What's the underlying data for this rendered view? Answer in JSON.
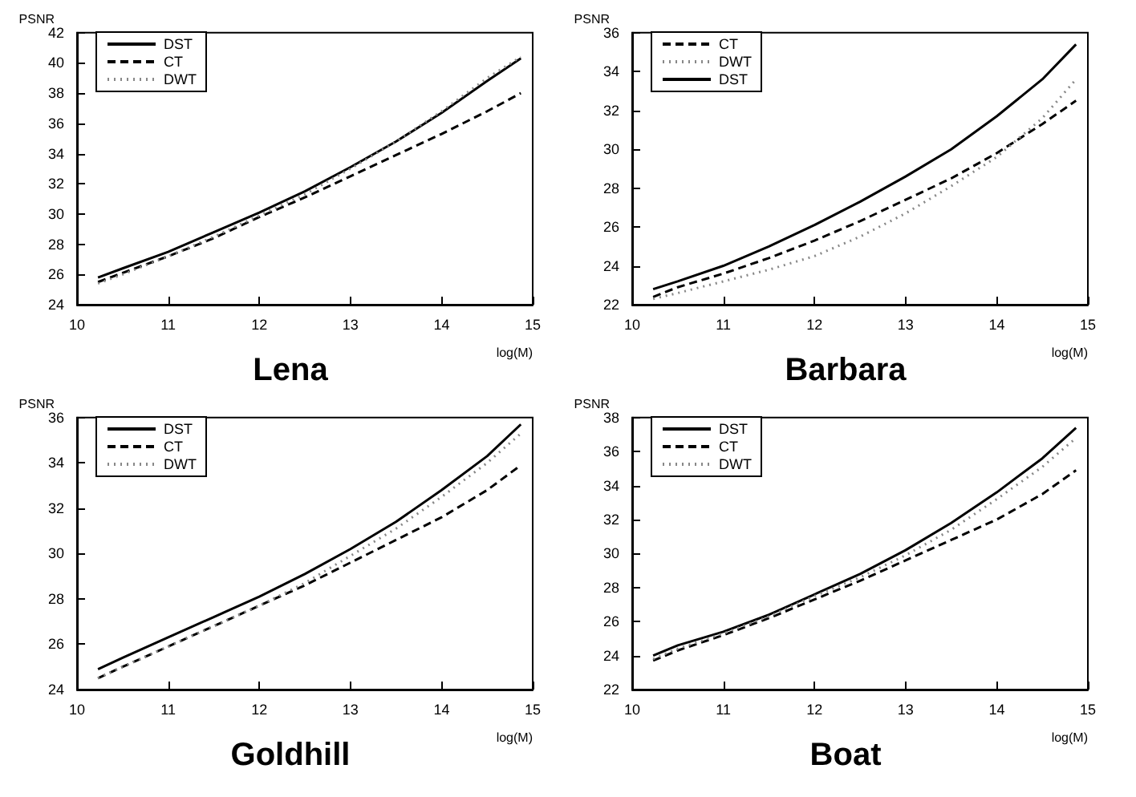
{
  "chart_data": [
    {
      "type": "line",
      "title": "Lena",
      "xlabel": "log(M)",
      "ylabel": "PSNR",
      "x": [
        10.23,
        10.5,
        11,
        11.5,
        12,
        12.5,
        13,
        13.5,
        14,
        14.5,
        14.87
      ],
      "xlim": [
        10,
        15
      ],
      "xticks": [
        10,
        11,
        12,
        13,
        14,
        15
      ],
      "ylim": [
        24,
        42
      ],
      "yticks": [
        24,
        26,
        28,
        30,
        32,
        34,
        36,
        38,
        40,
        42
      ],
      "grid": false,
      "legend": "top left",
      "series": [
        {
          "name": "DST",
          "color": "#000000",
          "line_style": "solid",
          "values": [
            25.8,
            26.4,
            27.5,
            28.8,
            30.1,
            31.5,
            33.1,
            34.8,
            36.7,
            38.8,
            40.3
          ]
        },
        {
          "name": "CT",
          "color": "#000000",
          "line_style": "dashed",
          "values": [
            25.5,
            26.1,
            27.2,
            28.4,
            29.8,
            31.1,
            32.5,
            33.9,
            35.3,
            36.8,
            38.0
          ]
        },
        {
          "name": "DWT",
          "color": "#888888",
          "line_style": "dotted",
          "values": [
            25.4,
            26.0,
            27.2,
            28.5,
            29.9,
            31.3,
            33.0,
            34.8,
            36.8,
            39.0,
            40.4
          ]
        }
      ]
    },
    {
      "type": "line",
      "title": "Barbara",
      "xlabel": "log(M)",
      "ylabel": "PSNR",
      "x": [
        10.23,
        10.5,
        11,
        11.5,
        12,
        12.5,
        13,
        13.5,
        14,
        14.5,
        14.87
      ],
      "xlim": [
        10,
        15
      ],
      "xticks": [
        10,
        11,
        12,
        13,
        14,
        15
      ],
      "ylim": [
        22,
        36
      ],
      "yticks": [
        22,
        24,
        26,
        28,
        30,
        32,
        34,
        36
      ],
      "grid": false,
      "legend": "top left",
      "series": [
        {
          "name": "CT",
          "color": "#000000",
          "line_style": "dashed",
          "values": [
            22.4,
            22.9,
            23.6,
            24.4,
            25.3,
            26.3,
            27.4,
            28.5,
            29.8,
            31.3,
            32.5
          ]
        },
        {
          "name": "DWT",
          "color": "#888888",
          "line_style": "dotted",
          "values": [
            22.3,
            22.6,
            23.2,
            23.8,
            24.5,
            25.5,
            26.7,
            28.1,
            29.6,
            31.6,
            33.6
          ]
        },
        {
          "name": "DST",
          "color": "#000000",
          "line_style": "solid",
          "values": [
            22.8,
            23.2,
            24.0,
            25.0,
            26.1,
            27.3,
            28.6,
            30.0,
            31.7,
            33.6,
            35.4
          ]
        }
      ]
    },
    {
      "type": "line",
      "title": "Goldhill",
      "xlabel": "log(M)",
      "ylabel": "PSNR",
      "x": [
        10.23,
        10.5,
        11,
        11.5,
        12,
        12.5,
        13,
        13.5,
        14,
        14.5,
        14.87
      ],
      "xlim": [
        10,
        15
      ],
      "xticks": [
        10,
        11,
        12,
        13,
        14,
        15
      ],
      "ylim": [
        24,
        36
      ],
      "yticks": [
        24,
        26,
        28,
        30,
        32,
        34,
        36
      ],
      "grid": false,
      "legend": "top left",
      "series": [
        {
          "name": "DST",
          "color": "#000000",
          "line_style": "solid",
          "values": [
            24.9,
            25.4,
            26.3,
            27.2,
            28.1,
            29.1,
            30.2,
            31.4,
            32.8,
            34.3,
            35.7
          ]
        },
        {
          "name": "CT",
          "color": "#000000",
          "line_style": "dashed",
          "values": [
            24.5,
            25.0,
            25.9,
            26.8,
            27.7,
            28.6,
            29.6,
            30.6,
            31.6,
            32.8,
            33.9
          ]
        },
        {
          "name": "DWT",
          "color": "#888888",
          "line_style": "dotted",
          "values": [
            24.5,
            25.0,
            25.9,
            26.8,
            27.7,
            28.7,
            29.9,
            31.1,
            32.5,
            34.0,
            35.3
          ]
        }
      ]
    },
    {
      "type": "line",
      "title": "Boat",
      "xlabel": "log(M)",
      "ylabel": "PSNR",
      "x": [
        10.23,
        10.5,
        11,
        11.5,
        12,
        12.5,
        13,
        13.5,
        14,
        14.5,
        14.87
      ],
      "xlim": [
        10,
        15
      ],
      "xticks": [
        10,
        11,
        12,
        13,
        14,
        15
      ],
      "ylim": [
        22,
        38
      ],
      "yticks": [
        22,
        24,
        26,
        28,
        30,
        32,
        34,
        36,
        38
      ],
      "grid": false,
      "legend": "top left",
      "series": [
        {
          "name": "DST",
          "color": "#000000",
          "line_style": "solid",
          "values": [
            24.0,
            24.6,
            25.4,
            26.4,
            27.6,
            28.8,
            30.2,
            31.8,
            33.6,
            35.6,
            37.4
          ]
        },
        {
          "name": "CT",
          "color": "#000000",
          "line_style": "dashed",
          "values": [
            23.7,
            24.3,
            25.2,
            26.2,
            27.3,
            28.4,
            29.6,
            30.8,
            32.0,
            33.5,
            34.9
          ]
        },
        {
          "name": "DWT",
          "color": "#888888",
          "line_style": "dotted",
          "values": [
            23.8,
            24.4,
            25.3,
            26.3,
            27.5,
            28.6,
            29.9,
            31.4,
            33.2,
            35.1,
            36.8
          ]
        }
      ]
    }
  ]
}
